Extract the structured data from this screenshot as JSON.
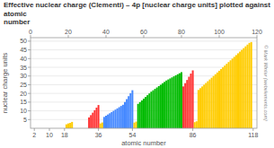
{
  "chart_data": {
    "type": "bar",
    "title": "Effective nuclear charge (Clementi) – 4p [nuclear charge units] plotted against atomic\nnumber",
    "xlabel": "atomic number",
    "ylabel": "nuclear charge units",
    "annotations": [
      "© Mark Winter (webelements.com)"
    ],
    "x": [
      19,
      20,
      21,
      22,
      31,
      32,
      33,
      34,
      35,
      36,
      37,
      38,
      39,
      40,
      41,
      42,
      43,
      44,
      45,
      46,
      47,
      48,
      49,
      50,
      51,
      52,
      53,
      54,
      55,
      56,
      57,
      58,
      59,
      60,
      61,
      62,
      63,
      64,
      65,
      66,
      67,
      68,
      69,
      70,
      71,
      72,
      73,
      74,
      75,
      76,
      77,
      78,
      79,
      80,
      81,
      82,
      83,
      84,
      85,
      86,
      87,
      88,
      89,
      90,
      91,
      92,
      93,
      94,
      95,
      96,
      97,
      98,
      99,
      100,
      101,
      102,
      103,
      104,
      105,
      106,
      107,
      108,
      109,
      110,
      111,
      112,
      113,
      114,
      115,
      116,
      117
    ],
    "values": [
      2.26,
      2.76,
      3.1,
      3.65,
      6.22,
      7.54,
      8.94,
      10.4,
      11.85,
      13.34,
      2.76,
      3.31,
      6.5,
      7.2,
      7.9,
      8.6,
      9.3,
      10.0,
      10.7,
      11.4,
      12.1,
      12.8,
      13.49,
      15.07,
      16.73,
      18.42,
      20.1,
      21.83,
      3.26,
      3.83,
      14.0,
      15.0,
      16.0,
      17.0,
      18.0,
      19.0,
      20.0,
      21.0,
      21.8,
      22.6,
      23.4,
      24.2,
      25.0,
      25.8,
      26.6,
      27.4,
      28.0,
      28.6,
      29.2,
      29.8,
      30.4,
      31.0,
      31.6,
      32.2,
      24.03,
      25.89,
      27.73,
      29.57,
      31.4,
      33.22,
      3.5,
      4.0,
      22.0,
      23.0,
      24.0,
      25.0,
      26.0,
      27.0,
      28.0,
      29.0,
      30.0,
      31.0,
      32.0,
      33.0,
      34.0,
      35.0,
      36.0,
      37.0,
      38.0,
      39.0,
      40.0,
      41.0,
      42.0,
      43.0,
      44.0,
      45.0,
      46.0,
      47.0,
      48.0,
      49.0,
      49.5
    ],
    "colors": [
      "#ffcc00",
      "#ffcc00",
      "#ffcc00",
      "#ffcc00",
      "#ff3333",
      "#ff3333",
      "#ff3333",
      "#ff3333",
      "#ff3333",
      "#ff3333",
      "#ffcc00",
      "#ffcc00",
      "#4488ff",
      "#4488ff",
      "#4488ff",
      "#4488ff",
      "#4488ff",
      "#4488ff",
      "#4488ff",
      "#4488ff",
      "#4488ff",
      "#4488ff",
      "#4488ff",
      "#4488ff",
      "#4488ff",
      "#4488ff",
      "#4488ff",
      "#4488ff",
      "#ffcc00",
      "#ffcc00",
      "#00bb00",
      "#00bb00",
      "#00bb00",
      "#00bb00",
      "#00bb00",
      "#00bb00",
      "#00bb00",
      "#00bb00",
      "#00bb00",
      "#00bb00",
      "#00bb00",
      "#00bb00",
      "#00bb00",
      "#00bb00",
      "#00bb00",
      "#00bb00",
      "#00bb00",
      "#00bb00",
      "#00bb00",
      "#00bb00",
      "#00bb00",
      "#00bb00",
      "#00bb00",
      "#00bb00",
      "#ff3333",
      "#ff3333",
      "#ff3333",
      "#ff3333",
      "#ff3333",
      "#ff3333",
      "#ffcc00",
      "#ffcc00",
      "#ffcc00",
      "#ffcc00",
      "#ffcc00",
      "#ffcc00",
      "#ffcc00",
      "#ffcc00",
      "#ffcc00",
      "#ffcc00",
      "#ffcc00",
      "#ffcc00",
      "#ffcc00",
      "#ffcc00",
      "#ffcc00",
      "#ffcc00",
      "#ffcc00",
      "#ffcc00",
      "#ffcc00",
      "#ffcc00",
      "#ffcc00",
      "#ffcc00",
      "#ffcc00",
      "#ffcc00",
      "#ffcc00",
      "#ffcc00",
      "#ffcc00",
      "#ffcc00",
      "#ffcc00",
      "#ffcc00",
      "#ffcc00"
    ],
    "xlim": [
      0,
      120
    ],
    "ylim": [
      0,
      52
    ],
    "xticks": [
      2,
      10,
      18,
      36,
      54,
      86,
      118
    ],
    "x2lim": [
      0,
      120
    ],
    "x2ticks": [
      0,
      20,
      40,
      60,
      80,
      100,
      120
    ],
    "yticks": [
      5,
      10,
      15,
      20,
      25,
      30,
      35,
      40,
      45,
      50
    ],
    "grid": true
  }
}
